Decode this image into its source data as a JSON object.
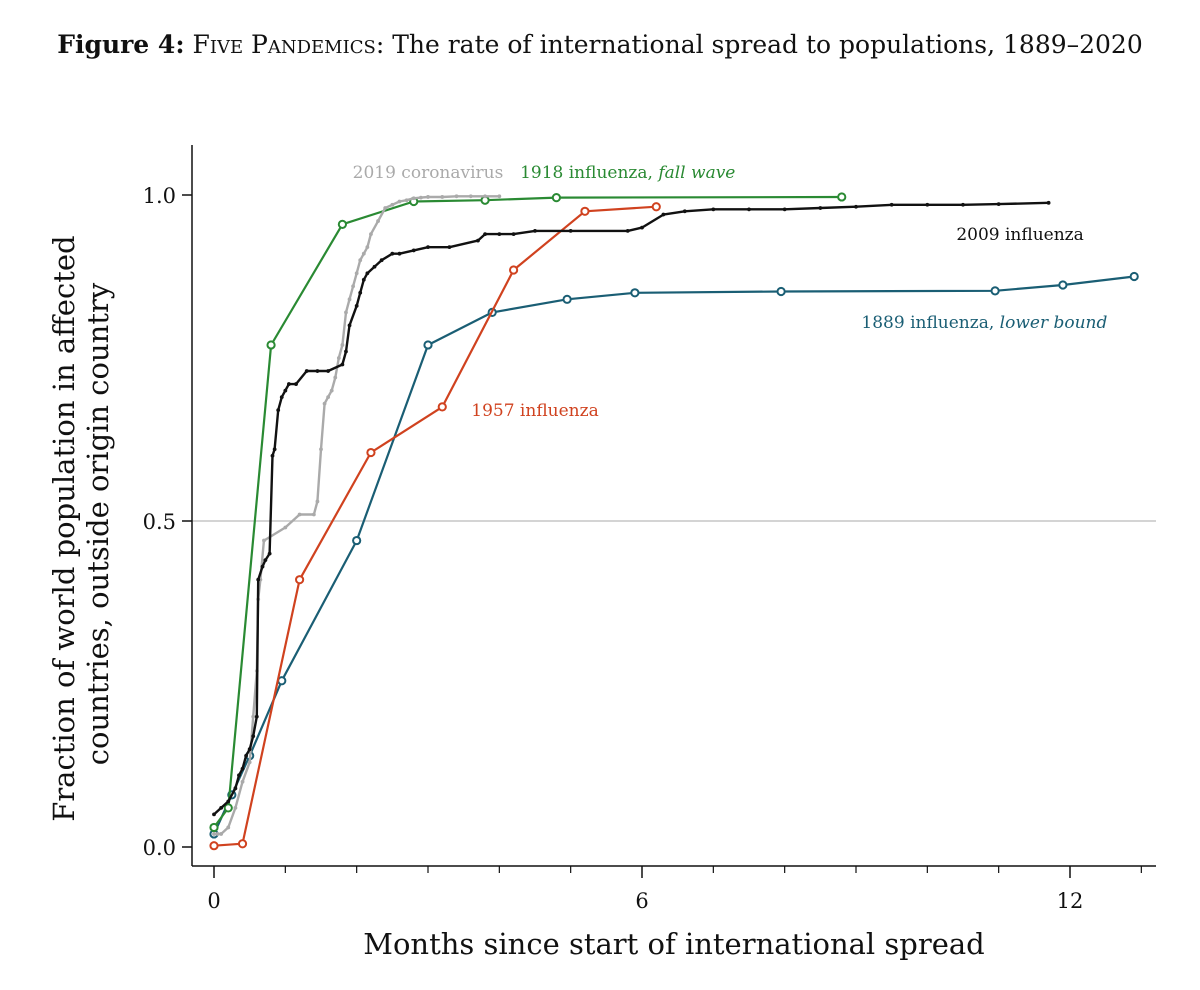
{
  "figure": {
    "label": "Figure 4:",
    "small_caps": "Five Pandemics",
    "rest": ": The rate of international spread to populations, 1889–2020"
  },
  "chart_data": {
    "type": "line",
    "title": "Five Pandemics: The rate of international spread to populations, 1889–2020",
    "xlabel": "Months since start of international spread",
    "ylabel_lines": [
      "Fraction of world population in affected",
      "countries, outside origin country"
    ],
    "xlim": [
      -0.3,
      13.2
    ],
    "ylim": [
      -0.03,
      1.03
    ],
    "xticks_major": [
      0,
      6,
      12
    ],
    "xticks_minor": [
      1,
      2,
      3,
      4,
      5,
      7,
      8,
      9,
      10,
      11,
      13
    ],
    "yticks": [
      0.0,
      0.5,
      1.0
    ],
    "ytick_labels": [
      "0.0",
      "0.5",
      "1.0"
    ],
    "reference_line": 0.5,
    "series": [
      {
        "name": "1889 influenza",
        "label_plain": "1889 influenza, ",
        "label_italic": "lower bound",
        "color": "#1a5e74",
        "marker": "open",
        "label_at": [
          10.8,
          0.805
        ],
        "x": [
          0,
          0.25,
          0.5,
          0.95,
          2.0,
          3.0,
          3.9,
          4.95,
          5.9,
          7.95,
          10.95,
          11.9,
          12.9
        ],
        "y": [
          0.02,
          0.08,
          0.14,
          0.255,
          0.47,
          0.77,
          0.82,
          0.84,
          0.85,
          0.852,
          0.853,
          0.862,
          0.875
        ]
      },
      {
        "name": "1918 influenza",
        "label_plain": "1918 influenza, ",
        "label_italic": "fall wave",
        "color": "#2a8a33",
        "marker": "open",
        "label_at": [
          5.8,
          1.035
        ],
        "x": [
          0,
          0.2,
          0.8,
          1.8,
          2.8,
          3.8,
          4.8,
          8.8
        ],
        "y": [
          0.03,
          0.06,
          0.77,
          0.955,
          0.99,
          0.992,
          0.996,
          0.997
        ]
      },
      {
        "name": "1957 influenza",
        "label_plain": "1957 influenza",
        "label_italic": "",
        "color": "#d0421f",
        "marker": "open",
        "label_at": [
          4.5,
          0.67
        ],
        "x": [
          0,
          0.4,
          1.2,
          2.2,
          3.2,
          4.2,
          5.2,
          6.2
        ],
        "y": [
          0.002,
          0.005,
          0.41,
          0.605,
          0.675,
          0.885,
          0.975,
          0.982
        ]
      },
      {
        "name": "2009 influenza",
        "label_plain": "2009 influenza",
        "label_italic": "",
        "color": "#111111",
        "marker": "dot",
        "label_at": [
          11.3,
          0.94
        ],
        "x": [
          0,
          0.1,
          0.2,
          0.3,
          0.35,
          0.4,
          0.45,
          0.5,
          0.55,
          0.6,
          0.62,
          0.68,
          0.72,
          0.78,
          0.82,
          0.85,
          0.9,
          0.95,
          1.0,
          1.05,
          1.15,
          1.3,
          1.45,
          1.6,
          1.8,
          1.85,
          1.9,
          2.0,
          2.05,
          2.1,
          2.15,
          2.25,
          2.35,
          2.5,
          2.6,
          2.8,
          3.0,
          3.3,
          3.7,
          3.8,
          4.0,
          4.2,
          4.5,
          5.0,
          5.8,
          6.0,
          6.3,
          6.6,
          7.0,
          7.5,
          8.0,
          8.5,
          9.0,
          9.5,
          10.0,
          10.5,
          11.0,
          11.7
        ],
        "y": [
          0.05,
          0.06,
          0.07,
          0.09,
          0.11,
          0.12,
          0.14,
          0.15,
          0.17,
          0.2,
          0.41,
          0.43,
          0.44,
          0.45,
          0.6,
          0.61,
          0.67,
          0.69,
          0.7,
          0.71,
          0.71,
          0.73,
          0.73,
          0.73,
          0.74,
          0.76,
          0.8,
          0.83,
          0.85,
          0.87,
          0.88,
          0.89,
          0.9,
          0.91,
          0.91,
          0.915,
          0.92,
          0.92,
          0.93,
          0.94,
          0.94,
          0.94,
          0.945,
          0.945,
          0.945,
          0.95,
          0.97,
          0.975,
          0.978,
          0.978,
          0.978,
          0.98,
          0.982,
          0.985,
          0.985,
          0.985,
          0.986,
          0.988
        ]
      },
      {
        "name": "2019 coronavirus",
        "label_plain": "2019 coronavirus",
        "label_italic": "",
        "color": "#aaaaaa",
        "marker": "dot",
        "label_at": [
          3.0,
          1.035
        ],
        "x": [
          0,
          0.05,
          0.1,
          0.2,
          0.3,
          0.4,
          0.5,
          0.55,
          0.6,
          0.62,
          0.65,
          0.7,
          1.0,
          1.2,
          1.4,
          1.45,
          1.5,
          1.55,
          1.6,
          1.65,
          1.7,
          1.75,
          1.8,
          1.85,
          1.9,
          1.95,
          2.0,
          2.05,
          2.1,
          2.15,
          2.2,
          2.3,
          2.4,
          2.5,
          2.6,
          2.7,
          2.8,
          2.9,
          3.0,
          3.2,
          3.4,
          3.6,
          3.8,
          4.0
        ],
        "y": [
          0.02,
          0.02,
          0.02,
          0.03,
          0.06,
          0.1,
          0.13,
          0.2,
          0.27,
          0.38,
          0.41,
          0.47,
          0.49,
          0.51,
          0.51,
          0.53,
          0.61,
          0.68,
          0.69,
          0.7,
          0.72,
          0.75,
          0.77,
          0.82,
          0.84,
          0.86,
          0.88,
          0.9,
          0.91,
          0.92,
          0.94,
          0.96,
          0.98,
          0.985,
          0.99,
          0.992,
          0.995,
          0.996,
          0.997,
          0.997,
          0.998,
          0.998,
          0.998,
          0.998
        ]
      }
    ]
  }
}
